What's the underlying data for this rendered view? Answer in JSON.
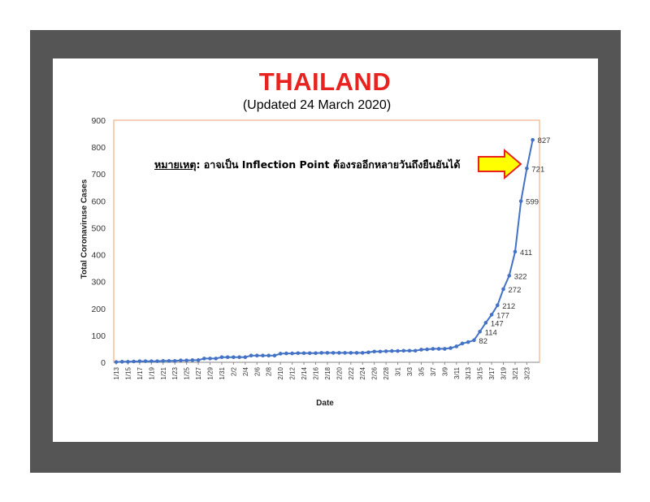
{
  "title": "THAILAND",
  "subtitle": "(Updated 24 March 2020)",
  "note": {
    "prefix": "หมายเหตุ",
    "separator": ":",
    "text": " อาจเป็น Inflection Point ต้องรออีกหลายวันถึงยืนยันได้"
  },
  "colors": {
    "title": "#e8231f",
    "line": "#4472c4",
    "plot_border": "#f0a070",
    "arrow_fill": "#ffff00",
    "arrow_stroke": "#e8231f",
    "frame": "#555555"
  },
  "chart_data": {
    "type": "line",
    "title": "THAILAND",
    "subtitle": "(Updated 24 March 2020)",
    "xlabel": "Date",
    "ylabel": "Total Coronaviruse Cases",
    "ylim": [
      0,
      900
    ],
    "yticks": [
      0,
      100,
      200,
      300,
      400,
      500,
      600,
      700,
      800,
      900
    ],
    "grid": false,
    "x": [
      "1/13",
      "1/14",
      "1/15",
      "1/16",
      "1/17",
      "1/18",
      "1/19",
      "1/20",
      "1/21",
      "1/22",
      "1/23",
      "1/24",
      "1/25",
      "1/26",
      "1/27",
      "1/28",
      "1/29",
      "1/30",
      "1/31",
      "2/1",
      "2/2",
      "2/3",
      "2/4",
      "2/5",
      "2/6",
      "2/7",
      "2/8",
      "2/9",
      "2/10",
      "2/11",
      "2/12",
      "2/13",
      "2/14",
      "2/15",
      "2/16",
      "2/17",
      "2/18",
      "2/19",
      "2/20",
      "2/21",
      "2/22",
      "2/23",
      "2/24",
      "2/25",
      "2/26",
      "2/27",
      "2/28",
      "2/29",
      "3/1",
      "3/2",
      "3/3",
      "3/4",
      "3/5",
      "3/6",
      "3/7",
      "3/8",
      "3/9",
      "3/10",
      "3/11",
      "3/12",
      "3/13",
      "3/14",
      "3/15",
      "3/16",
      "3/17",
      "3/18",
      "3/19",
      "3/20",
      "3/21",
      "3/22",
      "3/23",
      "3/24"
    ],
    "x_tick_labels": [
      "1/13",
      "1/15",
      "1/17",
      "1/19",
      "1/21",
      "1/23",
      "1/25",
      "1/27",
      "1/29",
      "1/31",
      "2/2",
      "2/4",
      "2/6",
      "2/8",
      "2/10",
      "2/12",
      "2/14",
      "2/16",
      "2/18",
      "2/20",
      "2/22",
      "2/24",
      "2/26",
      "2/28",
      "3/1",
      "3/3",
      "3/5",
      "3/7",
      "3/9",
      "3/11",
      "3/13",
      "3/15",
      "3/17",
      "3/19",
      "3/21",
      "3/23"
    ],
    "series": [
      {
        "values": [
          1,
          2,
          2,
          3,
          4,
          4,
          4,
          4,
          5,
          5,
          5,
          7,
          7,
          8,
          8,
          14,
          14,
          14,
          19,
          19,
          19,
          19,
          19,
          25,
          25,
          25,
          25,
          25,
          32,
          33,
          33,
          34,
          34,
          34,
          34,
          35,
          35,
          35,
          35,
          35,
          35,
          35,
          35,
          37,
          40,
          40,
          41,
          42,
          42,
          43,
          43,
          43,
          47,
          48,
          50,
          50,
          50,
          53,
          59,
          70,
          75,
          82,
          114,
          147,
          177,
          212,
          272,
          322,
          411,
          599,
          721,
          827
        ],
        "data_labels": [
          {
            "x": "3/14",
            "label": "82"
          },
          {
            "x": "3/15",
            "label": "114"
          },
          {
            "x": "3/16",
            "label": "147"
          },
          {
            "x": "3/17",
            "label": "177"
          },
          {
            "x": "3/18",
            "label": "212"
          },
          {
            "x": "3/19",
            "label": "272"
          },
          {
            "x": "3/20",
            "label": "322"
          },
          {
            "x": "3/21",
            "label": "411"
          },
          {
            "x": "3/22",
            "label": "599"
          },
          {
            "x": "3/23",
            "label": "721"
          },
          {
            "x": "3/24",
            "label": "827"
          }
        ]
      }
    ]
  }
}
